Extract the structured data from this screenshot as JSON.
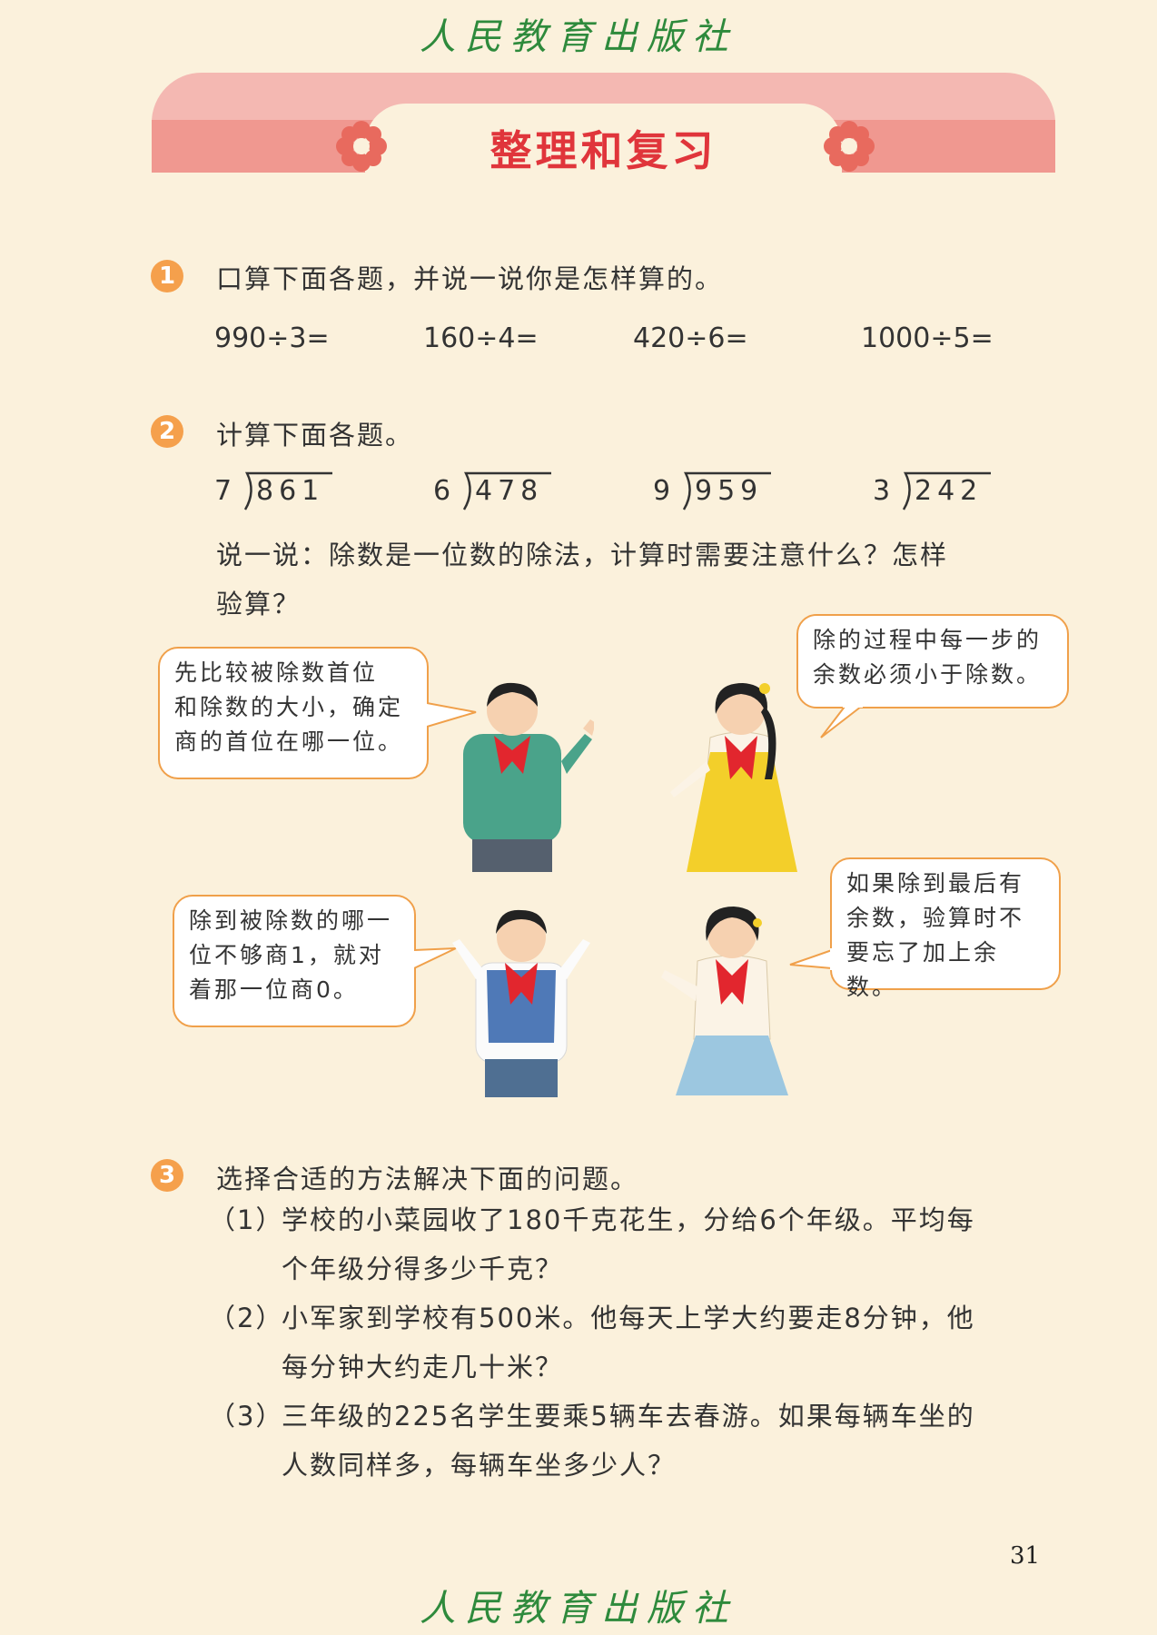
{
  "publisher": "人民教育出版社",
  "title": "整理和复习",
  "problem1": {
    "number": "1",
    "prompt": "口算下面各题，并说一说你是怎样算的。",
    "exprs": [
      "990÷3=",
      "160÷4=",
      "420÷6=",
      "1000÷5="
    ]
  },
  "problem2": {
    "number": "2",
    "prompt": "计算下面各题。",
    "divisions": [
      {
        "divisor": "7",
        "dividend": "861"
      },
      {
        "divisor": "6",
        "dividend": "478"
      },
      {
        "divisor": "9",
        "dividend": "959"
      },
      {
        "divisor": "3",
        "dividend": "242"
      }
    ],
    "discussion_line1": "说一说：除数是一位数的除法，计算时需要注意什么？怎样",
    "discussion_line2": "验算？",
    "bubbles": {
      "top_left": [
        "先比较被除数首位",
        "和除数的大小，确定",
        "商的首位在哪一位。"
      ],
      "top_right": [
        "除的过程中每一步的",
        "余数必须小于除数。"
      ],
      "bottom_left": [
        "除到被除数的哪一",
        "位不够商1，就对",
        "着那一位商0。"
      ],
      "bottom_right": [
        "如果除到最后有",
        "余数，验算时不",
        "要忘了加上余数。"
      ]
    }
  },
  "problem3": {
    "number": "3",
    "prompt": "选择合适的方法解决下面的问题。",
    "items": [
      {
        "label": "（1）",
        "line1": "学校的小菜园收了180千克花生，分给6个年级。平均每",
        "line2": "个年级分得多少千克？"
      },
      {
        "label": "（2）",
        "line1": "小军家到学校有500米。他每天上学大约要走8分钟，他",
        "line2": "每分钟大约走几十米？"
      },
      {
        "label": "（3）",
        "line1": "三年级的225名学生要乘5辆车去春游。如果每辆车坐的",
        "line2": "人数同样多，每辆车坐多少人？"
      }
    ]
  },
  "page_number": "31",
  "colors": {
    "title": "#e0353b",
    "badge": "#f5a04c",
    "publisher": "#2e8a3c",
    "bubble_border": "#f0a04a"
  }
}
